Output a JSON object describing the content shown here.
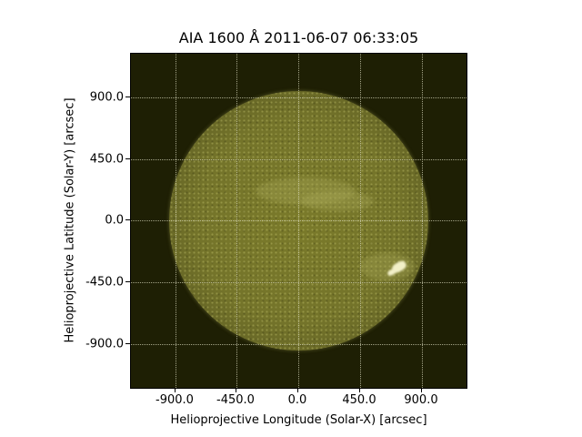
{
  "figure": {
    "title": "AIA 1600 Å 2011-06-07 06:33:05",
    "xlabel": "Helioprojective Longitude (Solar-X) [arcsec]",
    "ylabel": "Helioprojective Latitude (Solar-Y) [arcsec]",
    "x_ticks": [
      "-900.0",
      "-450.0",
      "0.0",
      "450.0",
      "900.0"
    ],
    "y_ticks": [
      "900.0",
      "450.0",
      "0.0",
      "-450.0",
      "-900.0"
    ],
    "grid": true,
    "colormap_color": "#7a7a2a",
    "background_color": "#1e1f04"
  }
}
